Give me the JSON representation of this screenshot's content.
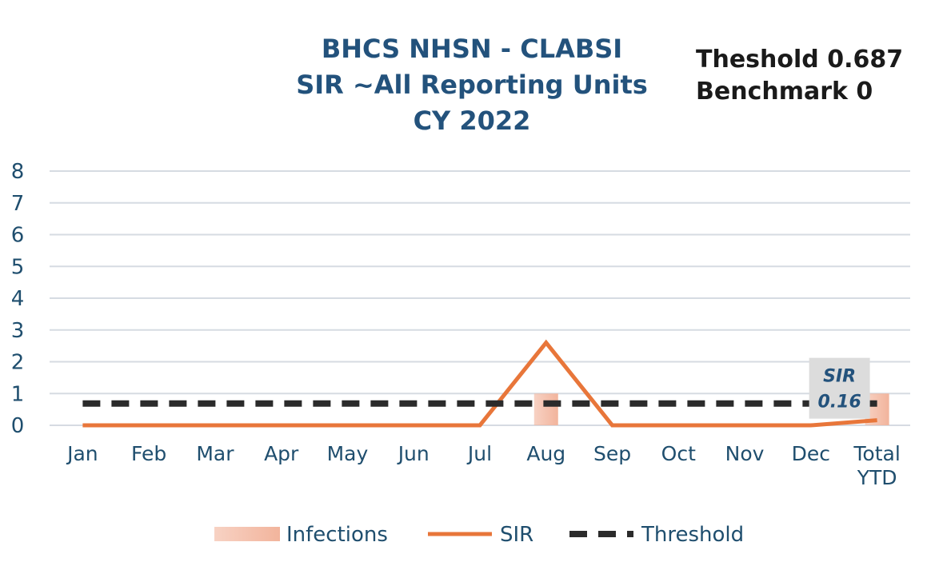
{
  "chart_data": {
    "type": "combo",
    "title": [
      "BHCS NHSN - CLABSI",
      "SIR ~All Reporting Units",
      "CY 2022"
    ],
    "annotations": [
      "Theshold 0.687",
      "Benchmark 0"
    ],
    "categories": [
      "Jan",
      "Feb",
      "Mar",
      "Apr",
      "May",
      "Jun",
      "Jul",
      "Aug",
      "Sep",
      "Oct",
      "Nov",
      "Dec",
      "Total YTD"
    ],
    "series": [
      {
        "name": "Infections",
        "kind": "bar",
        "color": "#f2b49c",
        "values": [
          0,
          0,
          0,
          0,
          0,
          0,
          0,
          1,
          0,
          0,
          0,
          0,
          1
        ]
      },
      {
        "name": "SIR",
        "kind": "line",
        "color": "#e8763a",
        "values": [
          0,
          0,
          0,
          0,
          0,
          0,
          0,
          2.6,
          0,
          0,
          0,
          0,
          0.16
        ],
        "value_labels": [
          null,
          null,
          null,
          null,
          null,
          null,
          null,
          null,
          null,
          null,
          null,
          null,
          "0.16"
        ]
      },
      {
        "name": "Threshold",
        "kind": "dashed",
        "color": "#2b2b2b",
        "values": [
          0.687,
          0.687,
          0.687,
          0.687,
          0.687,
          0.687,
          0.687,
          0.687,
          0.687,
          0.687,
          0.687,
          0.687,
          0.687
        ]
      }
    ],
    "ylim": [
      0,
      8
    ],
    "yticks": [
      0,
      1,
      2,
      3,
      4,
      5,
      6,
      7,
      8
    ],
    "grid": true
  }
}
